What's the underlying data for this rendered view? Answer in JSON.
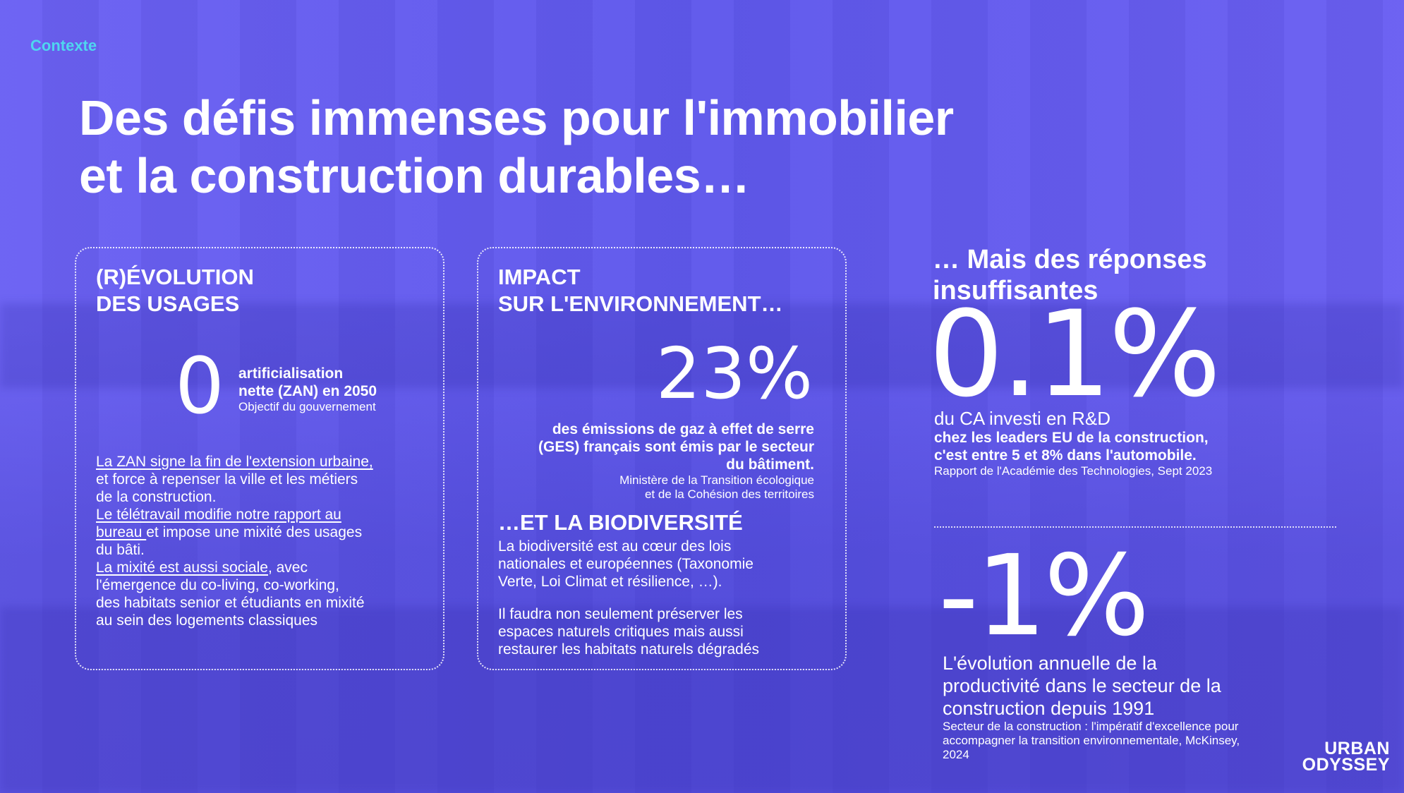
{
  "header": {
    "context": "Contexte",
    "title_line1": "Des défis immenses pour l'immobilier",
    "title_line2": "et la construction durables…"
  },
  "usages": {
    "title_line1": "(R)ÉVOLUTION",
    "title_line2": "DES USAGES",
    "big_number": "0",
    "stat_line1": "artificialisation",
    "stat_line2": "nette (ZAN) en 2050",
    "source": "Objectif du gouvernement",
    "p1_link": "La ZAN signe la fin de l'extension urbaine,",
    "p1_line2": "et force à repenser la ville et les métiers",
    "p1_line3": "de la construction.",
    "p2_link1": "Le télétravail modifie notre rapport au",
    "p2_link2": "bureau ",
    "p2_rest": "et impose une mixité des usages",
    "p2_line3": "du bâti.",
    "p3_link": "La mixité est aussi sociale",
    "p3_rest": ", avec",
    "p3_line2": "l'émergence du co-living, co-working,",
    "p3_line3": "des habitats senior et étudiants en mixité",
    "p3_line4": "au sein des logements classiques"
  },
  "environment": {
    "title_line1": "IMPACT",
    "title_line2": "SUR L'ENVIRONNEMENT…",
    "big_number": "23%",
    "stat_line1": "des émissions de gaz à effet de serre",
    "stat_line2": "(GES) français sont émis par le secteur",
    "stat_line3": "du bâtiment.",
    "source_line1": "Ministère de la Transition écologique",
    "source_line2": "et de la Cohésion des territoires",
    "bio_title": "…ET LA BIODIVERSITÉ",
    "bio_line1": "La biodiversité est au cœur des lois",
    "bio_line2": "nationales et européennes (Taxonomie",
    "bio_line3": "Verte, Loi Climat et résilience, …).",
    "bio2_line1": "Il faudra non seulement préserver les",
    "bio2_line2": "espaces naturels critiques mais aussi",
    "bio2_line3": "restaurer les habitats naturels dégradés"
  },
  "responses": {
    "title_line1": "… Mais des réponses",
    "title_line2": "insuffisantes",
    "rd_number": "0.1%",
    "rd_line1": "du CA investi en R&D",
    "rd_line2": "chez les leaders EU de la construction,",
    "rd_line3": "c'est entre 5 et 8% dans l'automobile.",
    "rd_source": "Rapport de l'Académie des Technologies, Sept 2023",
    "prod_number": "-1%",
    "prod_line1": "L'évolution annuelle de la",
    "prod_line2": "productivité dans le secteur de la",
    "prod_line3": "construction depuis 1991",
    "prod_source_line1": "Secteur de la construction : l'impératif d'excellence pour",
    "prod_source_line2": "accompagner la transition environnementale, McKinsey,",
    "prod_source_line3": "2024"
  },
  "logo": {
    "line1": "URBAN",
    "line2": "ODYSSEY"
  },
  "colors": {
    "background": "#5b55ea",
    "accent": "#4fd6ef",
    "text": "#ffffff"
  }
}
